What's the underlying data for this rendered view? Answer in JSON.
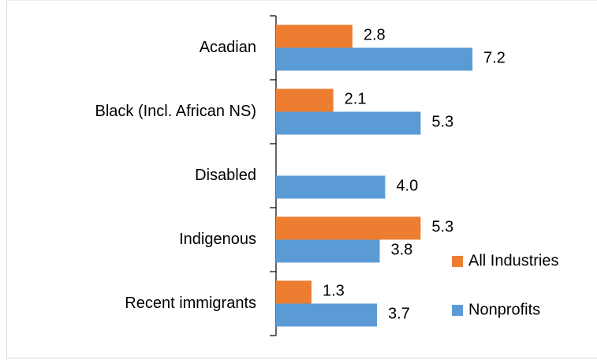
{
  "chart_data": {
    "type": "bar",
    "orientation": "horizontal",
    "categories": [
      "Acadian",
      "Black (Incl. African NS)",
      "Disabled",
      "Indigenous",
      "Recent immigrants"
    ],
    "series": [
      {
        "name": "All Industries",
        "color": "#ed7d31",
        "values": [
          2.8,
          2.1,
          null,
          5.3,
          1.3
        ],
        "value_labels": [
          "2.8",
          "2.1",
          null,
          "5.3",
          "1.3"
        ]
      },
      {
        "name": "Nonprofits",
        "color": "#5b9bd5",
        "values": [
          7.2,
          5.3,
          4.0,
          3.8,
          3.7
        ],
        "value_labels": [
          "7.2",
          "5.3",
          "4.0",
          "3.8",
          "3.7"
        ]
      }
    ],
    "xlim": [
      0,
      10
    ],
    "legend": "lower right"
  }
}
